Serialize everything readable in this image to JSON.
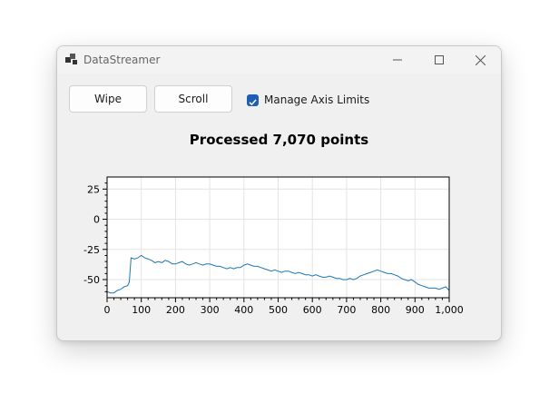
{
  "window": {
    "title": "DataStreamer"
  },
  "toolbar": {
    "wipe_label": "Wipe",
    "scroll_label": "Scroll",
    "manage_axis_label": "Manage Axis Limits",
    "manage_axis_checked": true
  },
  "colors": {
    "accent": "#1e5fb4",
    "series": "#1f77b4"
  },
  "chart_data": {
    "type": "line",
    "title": "Processed 7,070 points",
    "xlabel": "",
    "ylabel": "",
    "xlim": [
      0,
      1000
    ],
    "ylim": [
      -65,
      35
    ],
    "x_ticks": [
      0,
      100,
      200,
      300,
      400,
      500,
      600,
      700,
      800,
      900,
      1000
    ],
    "x_tick_labels": [
      "0",
      "100",
      "200",
      "300",
      "400",
      "500",
      "600",
      "700",
      "800",
      "900",
      "1,000"
    ],
    "y_ticks": [
      25,
      0,
      -25,
      -50
    ],
    "y_tick_labels": [
      "25",
      "0",
      "-25",
      "-50"
    ],
    "grid": true,
    "series": [
      {
        "x": [
          0,
          10,
          20,
          30,
          40,
          50,
          60,
          65,
          70,
          80,
          90,
          100,
          110,
          120,
          130,
          140,
          150,
          160,
          170,
          180,
          190,
          200,
          210,
          220,
          230,
          240,
          250,
          260,
          270,
          280,
          290,
          300,
          310,
          320,
          330,
          340,
          350,
          360,
          370,
          380,
          390,
          400,
          410,
          420,
          430,
          440,
          450,
          460,
          470,
          480,
          490,
          500,
          510,
          520,
          530,
          540,
          550,
          560,
          570,
          580,
          590,
          600,
          610,
          620,
          630,
          640,
          650,
          660,
          670,
          680,
          690,
          700,
          710,
          720,
          730,
          740,
          750,
          760,
          770,
          780,
          790,
          800,
          810,
          820,
          830,
          840,
          850,
          860,
          870,
          880,
          890,
          900,
          910,
          920,
          930,
          940,
          950,
          960,
          970,
          980,
          990,
          1000
        ],
        "y": [
          -60,
          -61,
          -61,
          -59,
          -58,
          -56,
          -55,
          -52,
          -32,
          -33,
          -32,
          -30,
          -32,
          -33,
          -34,
          -36,
          -35,
          -36,
          -34,
          -35,
          -37,
          -37,
          -36,
          -35,
          -37,
          -38,
          -37,
          -36,
          -37,
          -38,
          -37,
          -37,
          -38,
          -39,
          -39,
          -40,
          -41,
          -40,
          -41,
          -40,
          -40,
          -38,
          -37,
          -38,
          -39,
          -39,
          -40,
          -41,
          -42,
          -43,
          -42,
          -43,
          -44,
          -43,
          -43,
          -44,
          -45,
          -44,
          -45,
          -46,
          -46,
          -47,
          -46,
          -47,
          -48,
          -48,
          -47,
          -48,
          -49,
          -49,
          -50,
          -50,
          -49,
          -50,
          -49,
          -47,
          -46,
          -45,
          -44,
          -43,
          -42,
          -43,
          -44,
          -45,
          -45,
          -46,
          -47,
          -49,
          -50,
          -51,
          -50,
          -52,
          -54,
          -55,
          -56,
          -57,
          -57,
          -57,
          -58,
          -57,
          -56,
          -59
        ]
      }
    ]
  }
}
